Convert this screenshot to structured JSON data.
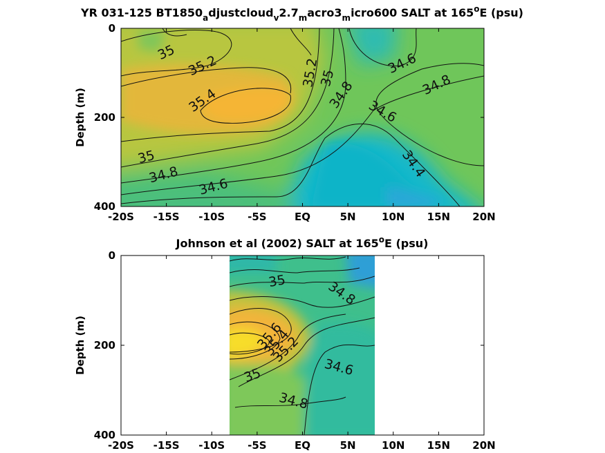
{
  "colors": {
    "salt_high": "#f7b733",
    "salt_mid": "#7cc94f",
    "salt_low": "#12b6c9",
    "salt_min": "#2a9be0"
  },
  "chart_data": [
    {
      "type": "heatmap",
      "title_parts": {
        "t1": "YR 031-125 BT1850",
        "s1": "a",
        "t2": "djustcloud",
        "s2": "v",
        "t3": "2.7",
        "s3": "m",
        "t4": "acro3",
        "s4": "m",
        "t5": "icro600 SALT at 165",
        "sup": "o",
        "t6": "E (psu)"
      },
      "ylabel": "Depth (m)",
      "xlim": [
        -20,
        20
      ],
      "ylim": [
        0,
        400
      ],
      "xticks": [
        -20,
        -15,
        -10,
        -5,
        0,
        5,
        10,
        15,
        20
      ],
      "xtick_labels": [
        "-20S",
        "-15S",
        "-10S",
        "-5S",
        "EQ",
        "5N",
        "10N",
        "15N",
        "20N"
      ],
      "yticks": [
        0,
        200,
        400
      ],
      "ytick_labels": [
        "0",
        "200",
        "400"
      ],
      "data_xrange": [
        -20,
        20
      ],
      "contour_labels": [
        {
          "text": "35",
          "x": -15.0,
          "y": 55,
          "angle": -25
        },
        {
          "text": "35.2",
          "x": -11.0,
          "y": 85,
          "angle": -25
        },
        {
          "text": "35.4",
          "x": -11.0,
          "y": 163,
          "angle": -35
        },
        {
          "text": "35.2",
          "x": 0.9,
          "y": 100,
          "angle": -80
        },
        {
          "text": "35",
          "x": 2.8,
          "y": 112,
          "angle": -75
        },
        {
          "text": "34.8",
          "x": 4.3,
          "y": 150,
          "angle": -55
        },
        {
          "text": "34.6",
          "x": 11.0,
          "y": 80,
          "angle": -25
        },
        {
          "text": "34.8",
          "x": 14.8,
          "y": 128,
          "angle": -25
        },
        {
          "text": "34.6",
          "x": 8.8,
          "y": 188,
          "angle": 30
        },
        {
          "text": "34.4",
          "x": 12.2,
          "y": 305,
          "angle": 55
        },
        {
          "text": "35",
          "x": -17.2,
          "y": 290,
          "angle": -15
        },
        {
          "text": "34.8",
          "x": -15.3,
          "y": 330,
          "angle": -15
        },
        {
          "text": "34.6",
          "x": -9.8,
          "y": 357,
          "angle": -15
        }
      ]
    },
    {
      "type": "heatmap",
      "title_parts": {
        "t1": "Johnson et al (2002) SALT at 165",
        "sup": "o",
        "t2": "E (psu)"
      },
      "ylabel": "Depth (m)",
      "xlim": [
        -20,
        20
      ],
      "ylim": [
        0,
        400
      ],
      "xticks": [
        -20,
        -15,
        -10,
        -5,
        0,
        5,
        10,
        15,
        20
      ],
      "xtick_labels": [
        "-20S",
        "-15S",
        "-10S",
        "-5S",
        "EQ",
        "5N",
        "10N",
        "15N",
        "20N"
      ],
      "yticks": [
        0,
        200,
        400
      ],
      "ytick_labels": [
        "0",
        "200",
        "400"
      ],
      "data_xrange": [
        -8,
        8
      ],
      "contour_labels": [
        {
          "text": "35",
          "x": -2.8,
          "y": 58,
          "angle": -10
        },
        {
          "text": "34.8",
          "x": 4.3,
          "y": 85,
          "angle": 35
        },
        {
          "text": "35.6",
          "x": -3.6,
          "y": 180,
          "angle": -50
        },
        {
          "text": "35.4",
          "x": -2.8,
          "y": 195,
          "angle": -50
        },
        {
          "text": "35.2",
          "x": -1.8,
          "y": 210,
          "angle": -45
        },
        {
          "text": "34.6",
          "x": 4.0,
          "y": 250,
          "angle": 15
        },
        {
          "text": "35",
          "x": -5.5,
          "y": 268,
          "angle": -20
        },
        {
          "text": "34.8",
          "x": -1.0,
          "y": 325,
          "angle": 15
        }
      ]
    }
  ]
}
